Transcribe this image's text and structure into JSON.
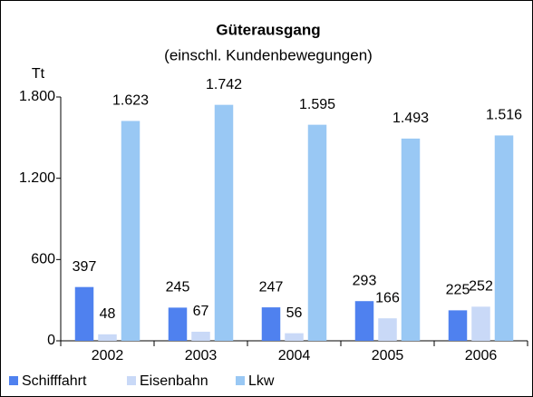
{
  "chart_data": {
    "type": "bar",
    "title": "Güterausgang",
    "subtitle": "(einschl. Kundenbewegungen)",
    "y_label": "Tt",
    "categories": [
      "2002",
      "2003",
      "2004",
      "2005",
      "2006"
    ],
    "series": [
      {
        "name": "Schifffahrt",
        "color": "#4f81ef",
        "values": [
          397,
          245,
          247,
          293,
          225
        ],
        "value_labels": [
          "397",
          "245",
          "247",
          "293",
          "225"
        ]
      },
      {
        "name": "Eisenbahn",
        "color": "#c9d9f7",
        "values": [
          48,
          67,
          56,
          166,
          252
        ],
        "value_labels": [
          "48",
          "67",
          "56",
          "166",
          "252"
        ]
      },
      {
        "name": "Lkw",
        "color": "#99c8f4",
        "values": [
          1623,
          1742,
          1595,
          1493,
          1516
        ],
        "value_labels": [
          "1.623",
          "1.742",
          "1.595",
          "1.493",
          "1.516"
        ]
      }
    ],
    "ylim": [
      0,
      1800
    ],
    "yticks": [
      0,
      600,
      {
        "value": 1200,
        "label": "1.200"
      },
      {
        "value": 1800,
        "label": "1.800"
      }
    ],
    "grid": false,
    "legend": "bottom"
  }
}
